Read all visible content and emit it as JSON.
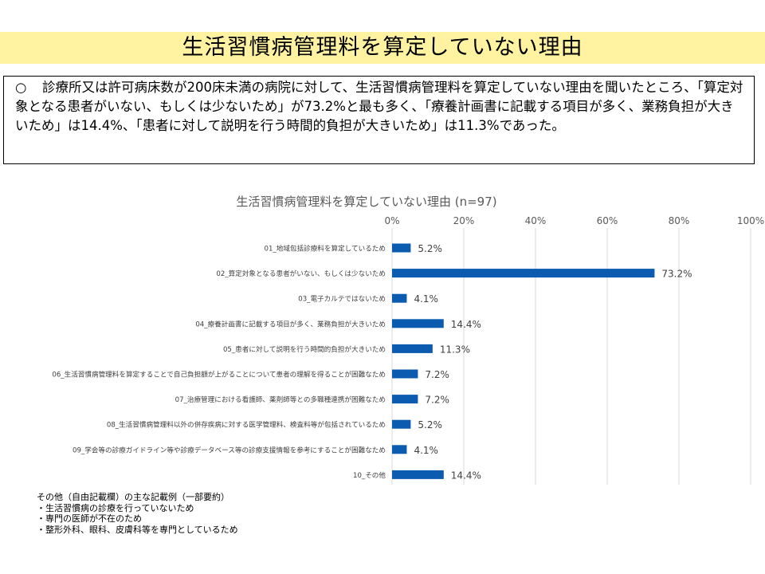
{
  "page_title": "生活習慣病管理料を算定していない理由",
  "summary": {
    "bullet": "○",
    "text": "診療所又は許可病床数が200床未満の病院に対して、生活習慣病管理料を算定していない理由を聞いたところ、「算定対象となる患者がいない、もしくは少ないため」が73.2%と最も多く、「療養計画書に記載する項目が多く、業務負担が大きいため」は14.4%、「患者に対して説明を行う時間的負担が大きいため」は11.3%であった。"
  },
  "chart_data": {
    "type": "bar",
    "orientation": "horizontal",
    "title": "生活習慣病管理料を算定していない理由 (n=97)",
    "xlim": [
      0,
      100
    ],
    "x_ticks": [
      "0%",
      "20%",
      "40%",
      "60%",
      "80%",
      "100%"
    ],
    "grid": true,
    "bar_color": "#0b5bb0",
    "categories": [
      "01_地域包括診療料を算定しているため",
      "02_算定対象となる患者がいない、もしくは少ないため",
      "03_電子カルテではないため",
      "04_療養計画書に記載する項目が多く、業務負担が大きいため",
      "05_患者に対して説明を行う時間的負担が大きいため",
      "06_生活習慣病管理料を算定することで自己負担額が上がることについて患者の理解を得ることが困難なため",
      "07_治療管理における看護師、薬剤師等との多職種連携が困難なため",
      "08_生活習慣病管理料以外の併存疾病に対する医学管理料、検査料等が包括されているため",
      "09_学会等の診療ガイドライン等や診療データベース等の診療支援情報を参考にすることが困難なため",
      "10_その他"
    ],
    "values": [
      5.2,
      73.2,
      4.1,
      14.4,
      11.3,
      7.2,
      7.2,
      5.2,
      4.1,
      14.4
    ],
    "labels": [
      "5.2%",
      "73.2%",
      "4.1%",
      "14.4%",
      "11.3%",
      "7.2%",
      "7.2%",
      "5.2%",
      "4.1%",
      "14.4%"
    ]
  },
  "notes": {
    "heading": "その他（自由記載欄）の主な記載例（一部要約）",
    "items": [
      "・生活習慣病の診療を行っていないため",
      "・専門の医師が不在のため",
      "・整形外科、眼科、皮膚科等を専門としているため"
    ]
  }
}
